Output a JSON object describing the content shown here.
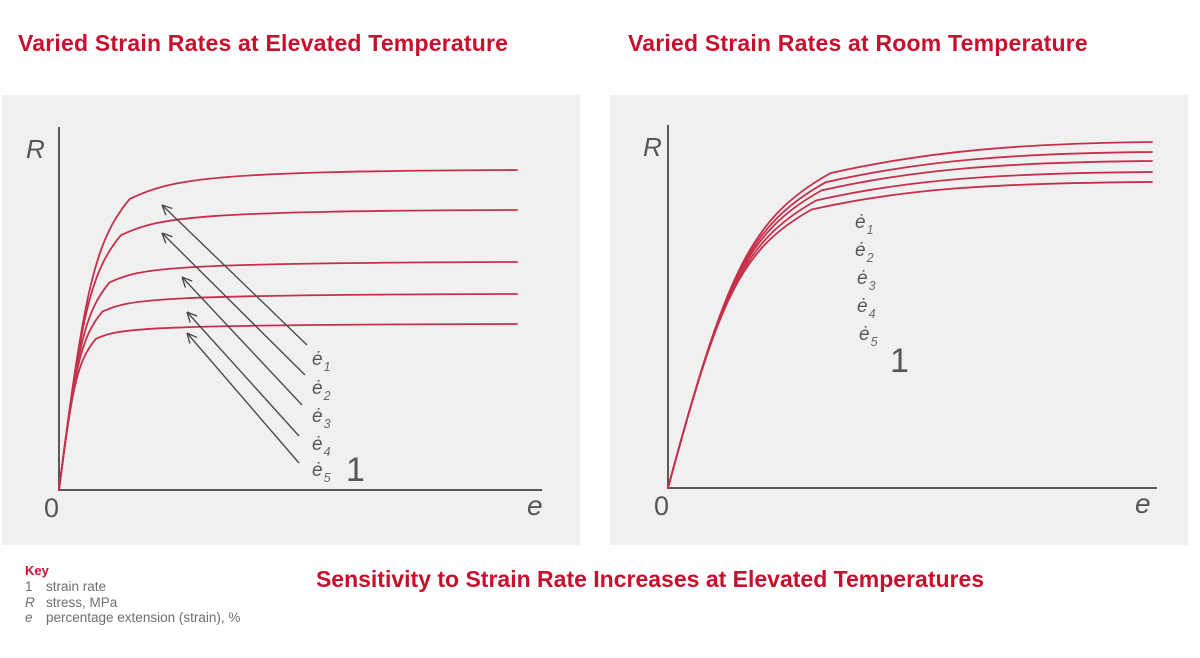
{
  "titles": {
    "left": "Varied Strain Rates at Elevated Temperature",
    "right": "Varied Strain Rates at Room Temperature"
  },
  "caption": "Sensitivity to Strain Rate Increases at Elevated Temperatures",
  "key": {
    "heading": "Key",
    "items": [
      {
        "symbol": "1",
        "desc": "strain rate"
      },
      {
        "symbol": "R",
        "desc": "stress, MPa"
      },
      {
        "symbol": "e",
        "desc": "percentage extension (strain), %"
      }
    ]
  },
  "colors": {
    "accent_red": "#C8102E",
    "curve_red": "#C5304A",
    "axis_gray": "#58595B",
    "arrow_gray": "#4B4C4F",
    "label_gray": "#55565A",
    "subscript_gray": "#6A6B6E",
    "key_text_gray": "#6D6E71",
    "panel_bg": "#F0F0F0"
  },
  "chart_data": [
    {
      "type": "line",
      "title": "Varied Strain Rates at Elevated Temperature",
      "x_axis_label": "e",
      "y_axis_label": "R",
      "origin_label": "0",
      "strain_rate_marker": "1",
      "axis_ticks": "none (schematic, unscaled)",
      "description": "Stress-strain curves at five strain rates; plateau stress increases strongly with strain rate at elevated temperature",
      "initial_slope": 7.0,
      "series": [
        {
          "name": "ė1",
          "base": "ė",
          "subscript": "1",
          "plateau_height": 320,
          "label_x": 310,
          "label_y": 270
        },
        {
          "name": "ė2",
          "base": "ė",
          "subscript": "2",
          "plateau_height": 280,
          "label_x": 310,
          "label_y": 299
        },
        {
          "name": "ė3",
          "base": "ė",
          "subscript": "3",
          "plateau_height": 228,
          "label_x": 310,
          "label_y": 327
        },
        {
          "name": "ė4",
          "base": "ė",
          "subscript": "4",
          "plateau_height": 196,
          "label_x": 310,
          "label_y": 355
        },
        {
          "name": "ė5",
          "base": "ė",
          "subscript": "5",
          "plateau_height": 166,
          "label_x": 310,
          "label_y": 381
        }
      ],
      "marker": {
        "x": 344,
        "y": 386
      },
      "annotation_arrows": [
        {
          "x1": 305,
          "y1": 250,
          "x2": 160,
          "y2": 110
        },
        {
          "x1": 303,
          "y1": 280,
          "x2": 160,
          "y2": 138
        },
        {
          "x1": 300,
          "y1": 310,
          "x2": 180,
          "y2": 182
        },
        {
          "x1": 297,
          "y1": 341,
          "x2": 185,
          "y2": 217
        },
        {
          "x1": 297,
          "y1": 368,
          "x2": 185,
          "y2": 238
        }
      ]
    },
    {
      "type": "line",
      "title": "Varied Strain Rates at Room Temperature",
      "x_axis_label": "e",
      "y_axis_label": "R",
      "origin_label": "0",
      "strain_rate_marker": "1",
      "axis_ticks": "none (schematic, unscaled)",
      "description": "Stress-strain curves at five strain rates; curves nearly coincide, showing low strain-rate sensitivity at room temperature",
      "initial_slope": 3.3,
      "series": [
        {
          "name": "ė1",
          "base": "ė",
          "subscript": "1",
          "plateau_height": 346,
          "label_x": 245,
          "label_y": 133
        },
        {
          "name": "ė2",
          "base": "ė",
          "subscript": "2",
          "plateau_height": 336,
          "label_x": 245,
          "label_y": 161
        },
        {
          "name": "ė3",
          "base": "ė",
          "subscript": "3",
          "plateau_height": 327,
          "label_x": 247,
          "label_y": 189
        },
        {
          "name": "ė4",
          "base": "ė",
          "subscript": "4",
          "plateau_height": 316,
          "label_x": 247,
          "label_y": 217
        },
        {
          "name": "ė5",
          "base": "ė",
          "subscript": "5",
          "plateau_height": 306,
          "label_x": 249,
          "label_y": 245
        }
      ],
      "marker": {
        "x": 280,
        "y": 277
      },
      "annotation_arrows": []
    }
  ]
}
